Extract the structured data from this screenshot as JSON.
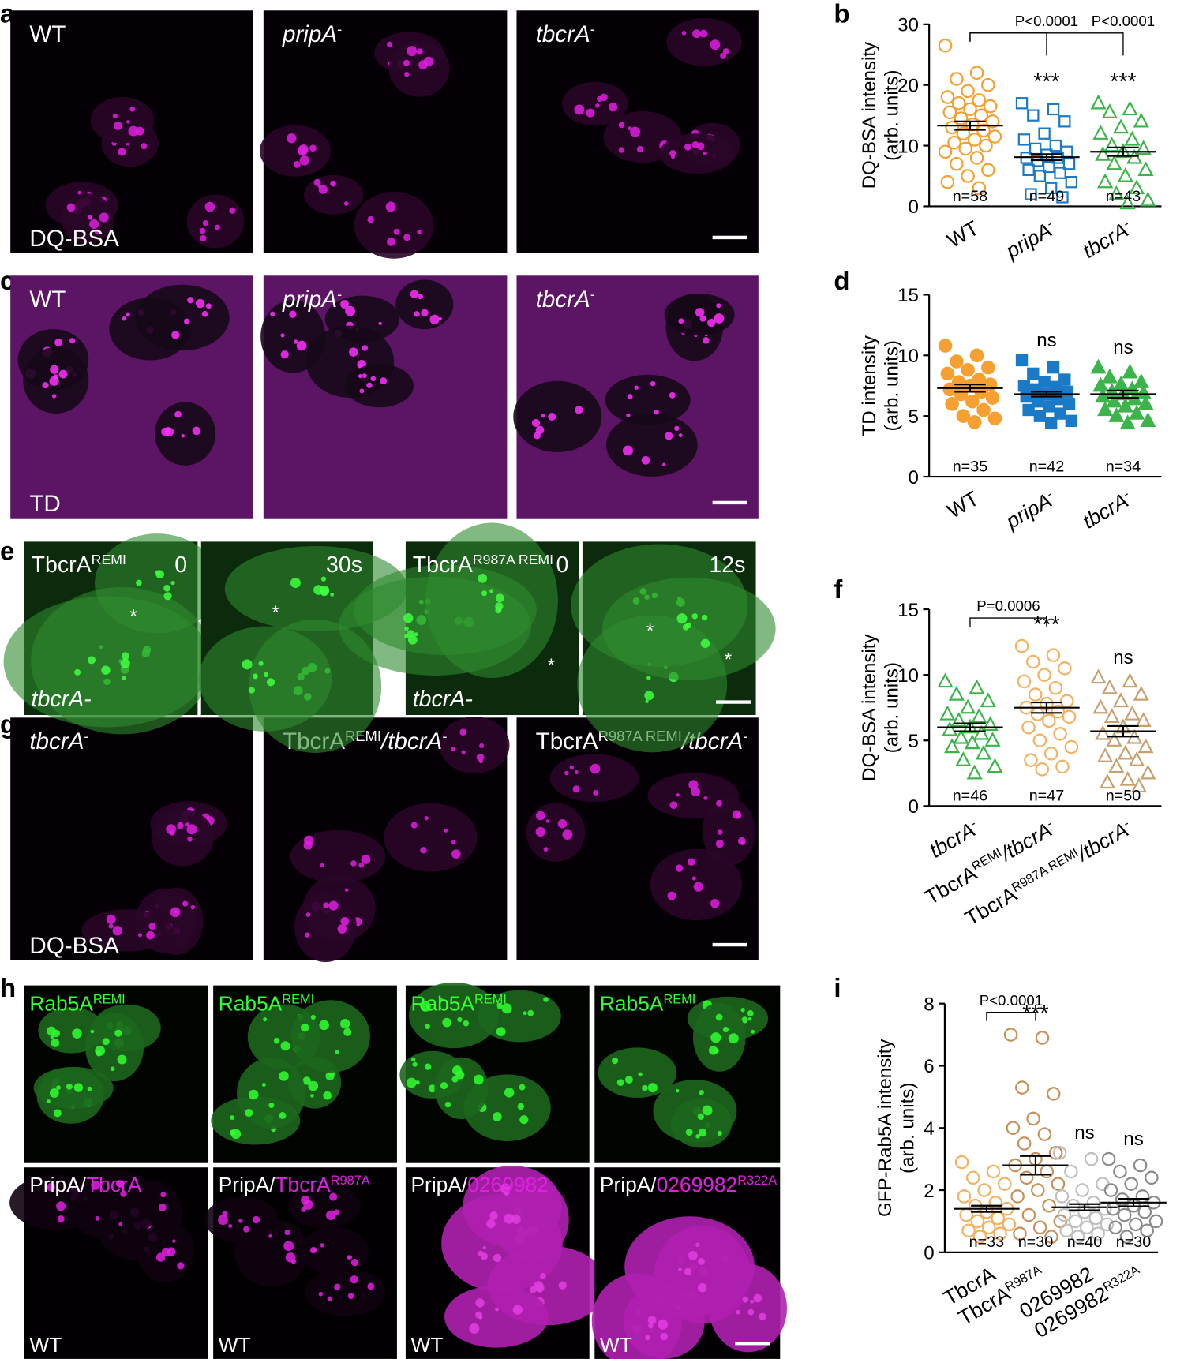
{
  "letters": [
    "a",
    "b",
    "c",
    "d",
    "e",
    "f",
    "g",
    "h",
    "i"
  ],
  "images": {
    "a": {
      "labels": [
        [
          "WT"
        ],
        [
          "pripA",
          "-"
        ],
        [
          "tbcrA",
          "-"
        ]
      ],
      "stain": "DQ-BSA"
    },
    "c": {
      "labels": [
        [
          "WT"
        ],
        [
          "pripA",
          "-"
        ],
        [
          "tbcrA",
          "-"
        ]
      ],
      "stain": "TD"
    },
    "e": {
      "labels": [
        [
          "TbcrA",
          "REMI"
        ],
        [
          "TbcrA",
          "R987A REMI"
        ]
      ],
      "times": [
        "0",
        "30s",
        "0",
        "12s"
      ],
      "strain": [
        "tbcrA-",
        "tbcrA-"
      ],
      "markers": [
        "*",
        "*",
        "*",
        "*",
        "*"
      ]
    },
    "f": {
      "labels": [
        [
          "tbcrA",
          "-"
        ],
        [
          "TbcrA",
          "REMI",
          "/tbcrA",
          "-"
        ],
        [
          "TbcrA",
          "R987A REMI",
          "/tbcrA",
          "-"
        ]
      ],
      "stain": "DQ-BSA"
    },
    "h": {
      "top": [
        [
          "Rab5A",
          "REMI"
        ],
        [
          "Rab5A",
          "REMI"
        ],
        [
          "Rab5A",
          "REMI"
        ],
        [
          "Rab5A",
          "REMI"
        ]
      ],
      "prefix": [
        "PripA/",
        "PripA/",
        "PripA/",
        "PripA/"
      ],
      "bottom": [
        [
          "TbcrA"
        ],
        [
          "TbcrA",
          "R987A"
        ],
        [
          "0269982"
        ],
        [
          "0269982",
          "R322A"
        ]
      ],
      "strain": [
        "WT",
        "WT",
        "WT",
        "WT"
      ]
    }
  },
  "charts": [
    {
      "type": "scatter",
      "ylabel": [
        "DQ-BSA intensity",
        "(arb. units)"
      ],
      "ylim": [
        0,
        30
      ],
      "yticks": [
        0,
        10,
        20,
        30
      ],
      "categories": [
        [
          "WT"
        ],
        [
          "pripA",
          "-"
        ],
        [
          "tbcrA",
          "-"
        ]
      ],
      "n_labels": [
        "n=58",
        "n=49",
        "n=43"
      ],
      "sig": [
        null,
        "***",
        "***"
      ],
      "brackets": [
        {
          "text": "P<0.0001",
          "from": 0,
          "to": 1
        },
        {
          "text": "P<0.0001",
          "from": 0,
          "to": 2
        }
      ],
      "series": [
        {
          "color": "#f5a030",
          "marker": "circle",
          "filled": false,
          "mean": 13.3,
          "sem": 0.7,
          "values": [
            26.5,
            22,
            21,
            20,
            19,
            18,
            17.5,
            17,
            16.5,
            16,
            15.5,
            15,
            14.5,
            14,
            13.5,
            13,
            12.5,
            12,
            11.5,
            11,
            10.5,
            10,
            9.5,
            9,
            8,
            7,
            6,
            5,
            4,
            3
          ]
        },
        {
          "color": "#1a7ac8",
          "marker": "square",
          "filled": false,
          "mean": 8.1,
          "sem": 0.5,
          "values": [
            17,
            16,
            15,
            14,
            12,
            11,
            10,
            9.5,
            9,
            8.5,
            8,
            8,
            7.5,
            7,
            6.5,
            6,
            5.5,
            5,
            4,
            3,
            2,
            1.5
          ]
        },
        {
          "color": "#3cb44b",
          "marker": "triangle",
          "filled": false,
          "mean": 9.0,
          "sem": 0.7,
          "values": [
            17,
            16,
            15.5,
            14,
            13,
            12,
            11,
            10,
            9.5,
            9,
            8.5,
            8,
            7,
            6,
            5,
            4,
            3,
            2,
            1,
            0.5
          ]
        }
      ]
    },
    {
      "type": "scatter",
      "ylabel": [
        "TD intensity",
        "(arb. units)"
      ],
      "ylim": [
        0,
        15
      ],
      "yticks": [
        0,
        5,
        10,
        15
      ],
      "categories": [
        [
          "WT"
        ],
        [
          "pripA",
          "-"
        ],
        [
          "tbcrA",
          "-"
        ]
      ],
      "n_labels": [
        "n=35",
        "n=42",
        "n=34"
      ],
      "sig": [
        null,
        "ns",
        "ns"
      ],
      "brackets": [],
      "series": [
        {
          "color": "#f5a030",
          "marker": "circle",
          "filled": true,
          "mean": 7.3,
          "sem": 0.3,
          "values": [
            10.8,
            10,
            9.5,
            9,
            8.8,
            8.5,
            8,
            7.8,
            7.6,
            7.5,
            7.2,
            7,
            6.8,
            6.5,
            6.2,
            6,
            5.5,
            5,
            4.8,
            4.5
          ]
        },
        {
          "color": "#1a7ac8",
          "marker": "square",
          "filled": true,
          "mean": 6.8,
          "sem": 0.2,
          "values": [
            9.6,
            9,
            8.5,
            8,
            7.8,
            7.5,
            7.4,
            7.2,
            7,
            6.8,
            6.6,
            6.4,
            6.2,
            6,
            5.8,
            5.5,
            5.2,
            5,
            4.6,
            4.4
          ]
        },
        {
          "color": "#3cb44b",
          "marker": "triangle",
          "filled": true,
          "mean": 6.8,
          "sem": 0.3,
          "values": [
            9,
            8.6,
            8.2,
            7.8,
            7.6,
            7.5,
            7.2,
            7,
            6.9,
            6.8,
            6.6,
            6.4,
            6.2,
            6,
            5.8,
            5.5,
            5.2,
            5,
            4.6,
            4.4
          ]
        }
      ]
    },
    {
      "type": "scatter",
      "ylabel": [
        "DQ-BSA intensity",
        "(arb. units)"
      ],
      "ylim": [
        0,
        15
      ],
      "yticks": [
        0,
        5,
        10,
        15
      ],
      "categories": [
        [
          "tbcrA",
          "-"
        ],
        [
          "TbcrA",
          "REMI",
          "/tbcrA",
          "-"
        ],
        [
          "TbcrA",
          "R987A REMI",
          "/tbcrA",
          "-"
        ]
      ],
      "n_labels": [
        "n=46",
        "n=47",
        "n=50"
      ],
      "sig": [
        null,
        "***",
        "ns"
      ],
      "brackets": [
        {
          "text": "P=0.0006",
          "from": 0,
          "to": 1
        }
      ],
      "series": [
        {
          "color": "#3cb44b",
          "marker": "triangle",
          "filled": false,
          "mean": 6.0,
          "sem": 0.3,
          "values": [
            9.5,
            9,
            8.5,
            8,
            7.5,
            7,
            6.8,
            6.5,
            6.2,
            6,
            5.8,
            5.5,
            5.2,
            5,
            4.8,
            4.5,
            4,
            3.5,
            3,
            2.5
          ]
        },
        {
          "color": "#f5b060",
          "marker": "circle",
          "filled": false,
          "mean": 7.5,
          "sem": 0.4,
          "values": [
            12.2,
            11.5,
            11,
            10.5,
            10,
            9.5,
            9,
            8.5,
            8,
            7.8,
            7.5,
            7.2,
            7,
            6.8,
            6.5,
            6,
            5.5,
            5,
            4.5,
            4,
            3.5,
            3,
            2.8
          ]
        },
        {
          "color": "#c8a070",
          "marker": "triangle",
          "filled": false,
          "mean": 5.7,
          "sem": 0.4,
          "values": [
            9.8,
            9.5,
            9,
            8.5,
            8,
            7.5,
            7,
            6.8,
            6.5,
            6,
            5.5,
            5.2,
            5,
            4.5,
            4,
            3.8,
            3.5,
            3,
            2.5,
            2,
            1.8,
            1.5
          ]
        }
      ]
    },
    {
      "type": "scatter",
      "ylabel": [
        "GFP-Rab5A intensity",
        "(arb. units)"
      ],
      "ylim": [
        0,
        8
      ],
      "yticks": [
        0,
        2,
        4,
        6,
        8
      ],
      "categories": [
        [
          "TbcrA"
        ],
        [
          "TbcrA",
          "R987A"
        ],
        [
          "0269982"
        ],
        [
          "0269982",
          "R322A"
        ]
      ],
      "n_labels": [
        "n=33",
        "n=30",
        "n=40",
        "n=30"
      ],
      "sig": [
        null,
        "***",
        "ns",
        "ns"
      ],
      "brackets": [
        {
          "text": "P<0.0001",
          "from": 0,
          "to": 1
        }
      ],
      "series": [
        {
          "color": "#f5b060",
          "marker": "circle",
          "filled": false,
          "mean": 1.4,
          "sem": 0.1,
          "values": [
            2.9,
            2.6,
            2.4,
            2.2,
            2,
            1.8,
            1.6,
            1.5,
            1.4,
            1.3,
            1.2,
            1.1,
            1,
            0.9,
            0.8,
            0.7,
            0.6,
            0.5
          ]
        },
        {
          "color": "#c8905a",
          "marker": "circle",
          "filled": false,
          "mean": 2.8,
          "sem": 0.3,
          "values": [
            7,
            6.9,
            5.3,
            5.1,
            4.3,
            4,
            3.8,
            3.5,
            3.2,
            3,
            2.8,
            2.6,
            2.4,
            2.2,
            2,
            1.8,
            1.5,
            1.2,
            1,
            0.8,
            0.6,
            0.5
          ]
        },
        {
          "color": "#c0c0c0",
          "marker": "circle",
          "filled": false,
          "mean": 1.45,
          "sem": 0.1,
          "values": [
            3.2,
            3,
            2.6,
            2.2,
            2,
            1.8,
            1.6,
            1.5,
            1.4,
            1.3,
            1.2,
            1.1,
            1,
            0.9,
            0.8,
            0.7,
            0.6,
            0.5
          ]
        },
        {
          "color": "#8a8a8a",
          "marker": "circle",
          "filled": false,
          "mean": 1.6,
          "sem": 0.12,
          "values": [
            3,
            2.8,
            2.6,
            2.4,
            2.2,
            2,
            1.8,
            1.7,
            1.6,
            1.5,
            1.4,
            1.3,
            1.2,
            1,
            0.9,
            0.8,
            0.7,
            0.5
          ]
        }
      ]
    }
  ]
}
